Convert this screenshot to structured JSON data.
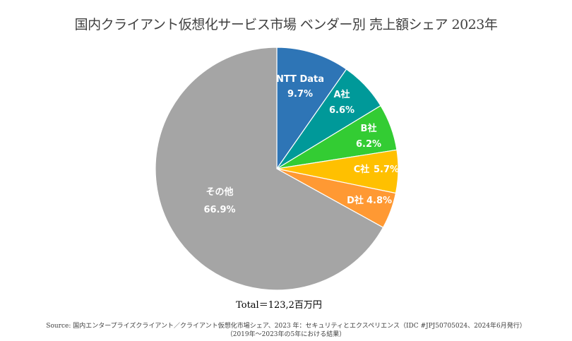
{
  "chart_data": {
    "type": "pie",
    "title": "国内クライアント仮想化サービス市場  ベンダー別  売上額シェア 2023年",
    "start_angle_deg": 0,
    "direction": "clockwise",
    "slices": [
      {
        "name": "NTT Data",
        "value": 9.7,
        "label_pct": "9.7%",
        "color": "#2E75B6"
      },
      {
        "name": "A社",
        "value": 6.6,
        "label_pct": "6.6%",
        "color": "#009999"
      },
      {
        "name": "B社",
        "value": 6.2,
        "label_pct": "6.2%",
        "color": "#33CC33"
      },
      {
        "name": "C社",
        "value": 5.7,
        "label_pct": "5.7%",
        "color": "#FFC000"
      },
      {
        "name": "D社",
        "value": 4.8,
        "label_pct": "4.8%",
        "color": "#FF9933"
      },
      {
        "name": "その他",
        "value": 66.9,
        "label_pct": "66.9%",
        "color": "#A5A5A5"
      }
    ],
    "total": "Total＝123,2百万円",
    "source_line1": "Source: 国内エンタープライズクライアント／クライアント仮想化市場シェア、2023 年：セキュリティとエクスペリエンス（IDC #JPJ50705024、2024年6月発行）",
    "source_line2": "（2019年～2023年の5年における結果）"
  }
}
